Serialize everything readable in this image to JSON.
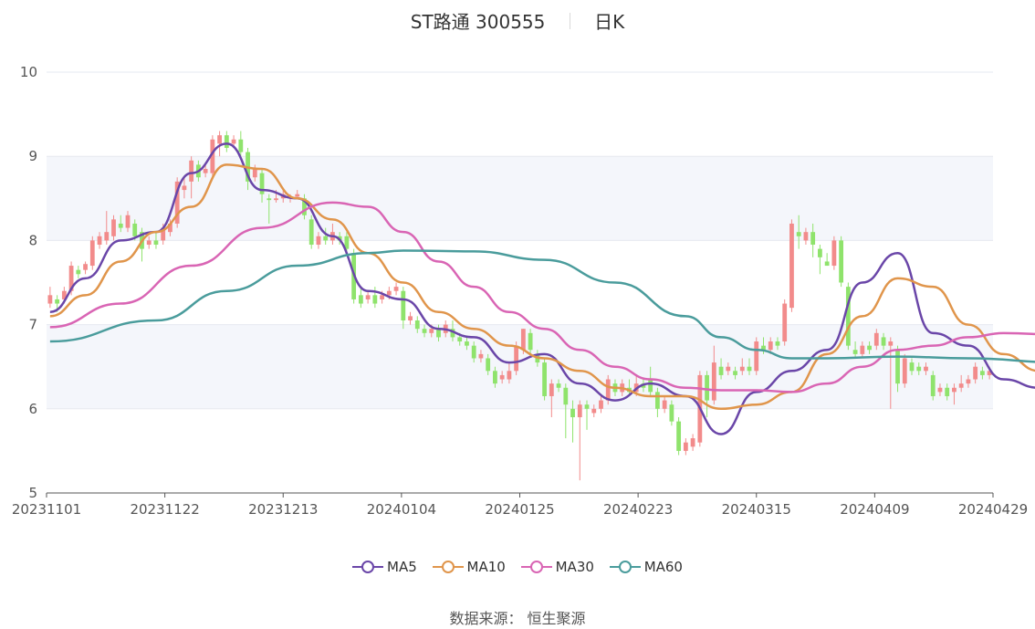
{
  "header": {
    "title": "ST路通 300555",
    "period": "日K"
  },
  "source": {
    "label": "数据来源：",
    "value": "恒生聚源"
  },
  "chart_data": {
    "type": "candlestick",
    "y_range": [
      5,
      10
    ],
    "y_ticks": [
      "5",
      "6",
      "7",
      "8",
      "9",
      "10"
    ],
    "x_ticks": [
      "20231101",
      "20231122",
      "20231213",
      "20240104",
      "20240125",
      "20240223",
      "20240315",
      "20240409",
      "20240429"
    ],
    "legend": [
      "MA5",
      "MA10",
      "MA30",
      "MA60"
    ],
    "colors": {
      "up": "#f28b8b",
      "down": "#8fe36c",
      "MA5": "#6a46a8",
      "MA10": "#e0954b",
      "MA30": "#d965b4",
      "MA60": "#4a9c9c",
      "grid": "#e6e8f0",
      "band": "#f4f6fb"
    },
    "candles": [
      {
        "o": 7.25,
        "c": 7.35,
        "h": 7.45,
        "l": 7.2
      },
      {
        "o": 7.3,
        "c": 7.25,
        "h": 7.35,
        "l": 7.15
      },
      {
        "o": 7.3,
        "c": 7.4,
        "h": 7.45,
        "l": 7.25
      },
      {
        "o": 7.4,
        "c": 7.7,
        "h": 7.75,
        "l": 7.35
      },
      {
        "o": 7.65,
        "c": 7.6,
        "h": 7.7,
        "l": 7.55
      },
      {
        "o": 7.65,
        "c": 7.72,
        "h": 7.75,
        "l": 7.6
      },
      {
        "o": 7.7,
        "c": 8.0,
        "h": 8.05,
        "l": 7.65
      },
      {
        "o": 7.95,
        "c": 8.05,
        "h": 8.1,
        "l": 7.9
      },
      {
        "o": 8.0,
        "c": 8.1,
        "h": 8.35,
        "l": 7.95
      },
      {
        "o": 8.05,
        "c": 8.25,
        "h": 8.3,
        "l": 8.0
      },
      {
        "o": 8.2,
        "c": 8.15,
        "h": 8.3,
        "l": 8.1
      },
      {
        "o": 8.15,
        "c": 8.3,
        "h": 8.35,
        "l": 8.1
      },
      {
        "o": 8.2,
        "c": 8.05,
        "h": 8.25,
        "l": 8.0
      },
      {
        "o": 8.1,
        "c": 7.9,
        "h": 8.15,
        "l": 7.75
      },
      {
        "o": 7.95,
        "c": 8.0,
        "h": 8.05,
        "l": 7.9
      },
      {
        "o": 8.0,
        "c": 7.95,
        "h": 8.1,
        "l": 7.9
      },
      {
        "o": 8.0,
        "c": 8.15,
        "h": 8.2,
        "l": 7.95
      },
      {
        "o": 8.1,
        "c": 8.2,
        "h": 8.25,
        "l": 8.05
      },
      {
        "o": 8.2,
        "c": 8.7,
        "h": 8.75,
        "l": 8.15
      },
      {
        "o": 8.6,
        "c": 8.65,
        "h": 8.75,
        "l": 8.5
      },
      {
        "o": 8.7,
        "c": 8.95,
        "h": 9.0,
        "l": 8.5
      },
      {
        "o": 8.9,
        "c": 8.75,
        "h": 8.95,
        "l": 8.7
      },
      {
        "o": 8.8,
        "c": 8.85,
        "h": 8.9,
        "l": 8.75
      },
      {
        "o": 8.8,
        "c": 9.2,
        "h": 9.25,
        "l": 8.75
      },
      {
        "o": 9.15,
        "c": 9.25,
        "h": 9.3,
        "l": 9.0
      },
      {
        "o": 9.25,
        "c": 9.1,
        "h": 9.3,
        "l": 9.05
      },
      {
        "o": 9.15,
        "c": 9.2,
        "h": 9.25,
        "l": 9.1
      },
      {
        "o": 9.2,
        "c": 9.05,
        "h": 9.3,
        "l": 9.0
      },
      {
        "o": 9.05,
        "c": 8.7,
        "h": 9.1,
        "l": 8.6
      },
      {
        "o": 8.75,
        "c": 8.85,
        "h": 8.9,
        "l": 8.7
      },
      {
        "o": 8.8,
        "c": 8.55,
        "h": 8.85,
        "l": 8.45
      },
      {
        "o": 8.5,
        "c": 8.48,
        "h": 8.55,
        "l": 8.2
      },
      {
        "o": 8.48,
        "c": 8.5,
        "h": 8.6,
        "l": 8.45
      },
      {
        "o": 8.5,
        "c": 8.55,
        "h": 8.6,
        "l": 8.45
      },
      {
        "o": 8.5,
        "c": 8.52,
        "h": 8.55,
        "l": 8.45
      },
      {
        "o": 8.52,
        "c": 8.55,
        "h": 8.6,
        "l": 8.5
      },
      {
        "o": 8.5,
        "c": 8.3,
        "h": 8.55,
        "l": 8.25
      },
      {
        "o": 8.25,
        "c": 7.95,
        "h": 8.3,
        "l": 7.9
      },
      {
        "o": 7.95,
        "c": 8.05,
        "h": 8.1,
        "l": 7.9
      },
      {
        "o": 8.05,
        "c": 8.0,
        "h": 8.15,
        "l": 7.95
      },
      {
        "o": 8.0,
        "c": 8.1,
        "h": 8.2,
        "l": 7.95
      },
      {
        "o": 8.05,
        "c": 8.0,
        "h": 8.1,
        "l": 7.95
      },
      {
        "o": 8.05,
        "c": 7.9,
        "h": 8.1,
        "l": 7.85
      },
      {
        "o": 7.85,
        "c": 7.3,
        "h": 7.9,
        "l": 7.25
      },
      {
        "o": 7.35,
        "c": 7.25,
        "h": 7.45,
        "l": 7.2
      },
      {
        "o": 7.3,
        "c": 7.35,
        "h": 7.4,
        "l": 7.25
      },
      {
        "o": 7.35,
        "c": 7.25,
        "h": 7.45,
        "l": 7.2
      },
      {
        "o": 7.3,
        "c": 7.35,
        "h": 7.4,
        "l": 7.25
      },
      {
        "o": 7.35,
        "c": 7.4,
        "h": 7.45,
        "l": 7.3
      },
      {
        "o": 7.4,
        "c": 7.45,
        "h": 7.5,
        "l": 7.35
      },
      {
        "o": 7.4,
        "c": 7.05,
        "h": 7.45,
        "l": 6.95
      },
      {
        "o": 7.05,
        "c": 7.1,
        "h": 7.15,
        "l": 7.0
      },
      {
        "o": 7.05,
        "c": 6.95,
        "h": 7.1,
        "l": 6.9
      },
      {
        "o": 6.95,
        "c": 6.9,
        "h": 7.0,
        "l": 6.85
      },
      {
        "o": 6.9,
        "c": 6.95,
        "h": 7.0,
        "l": 6.85
      },
      {
        "o": 6.95,
        "c": 6.85,
        "h": 7.0,
        "l": 6.8
      },
      {
        "o": 6.9,
        "c": 7.0,
        "h": 7.05,
        "l": 6.85
      },
      {
        "o": 6.95,
        "c": 6.85,
        "h": 7.05,
        "l": 6.8
      },
      {
        "o": 6.85,
        "c": 6.8,
        "h": 6.9,
        "l": 6.75
      },
      {
        "o": 6.8,
        "c": 6.75,
        "h": 6.85,
        "l": 6.7
      },
      {
        "o": 6.75,
        "c": 6.6,
        "h": 6.8,
        "l": 6.55
      },
      {
        "o": 6.6,
        "c": 6.65,
        "h": 6.7,
        "l": 6.55
      },
      {
        "o": 6.6,
        "c": 6.45,
        "h": 6.65,
        "l": 6.4
      },
      {
        "o": 6.45,
        "c": 6.3,
        "h": 6.5,
        "l": 6.25
      },
      {
        "o": 6.35,
        "c": 6.4,
        "h": 6.45,
        "l": 6.3
      },
      {
        "o": 6.35,
        "c": 6.45,
        "h": 6.55,
        "l": 6.3
      },
      {
        "o": 6.45,
        "c": 6.75,
        "h": 6.8,
        "l": 6.4
      },
      {
        "o": 6.7,
        "c": 6.95,
        "h": 6.95,
        "l": 6.65
      },
      {
        "o": 6.9,
        "c": 6.7,
        "h": 6.95,
        "l": 6.65
      },
      {
        "o": 6.65,
        "c": 6.55,
        "h": 6.7,
        "l": 6.5
      },
      {
        "o": 6.55,
        "c": 6.15,
        "h": 6.6,
        "l": 6.1
      },
      {
        "o": 6.15,
        "c": 6.3,
        "h": 6.35,
        "l": 5.9
      },
      {
        "o": 6.3,
        "c": 6.25,
        "h": 6.35,
        "l": 6.2
      },
      {
        "o": 6.25,
        "c": 6.05,
        "h": 6.3,
        "l": 5.65
      },
      {
        "o": 6.0,
        "c": 5.9,
        "h": 6.1,
        "l": 5.6
      },
      {
        "o": 5.9,
        "c": 6.05,
        "h": 6.1,
        "l": 5.15
      },
      {
        "o": 6.05,
        "c": 6.0,
        "h": 6.1,
        "l": 5.75
      },
      {
        "o": 5.95,
        "c": 6.0,
        "h": 6.05,
        "l": 5.9
      },
      {
        "o": 6.0,
        "c": 6.1,
        "h": 6.15,
        "l": 5.95
      },
      {
        "o": 6.1,
        "c": 6.35,
        "h": 6.4,
        "l": 6.05
      },
      {
        "o": 6.3,
        "c": 6.2,
        "h": 6.35,
        "l": 6.15
      },
      {
        "o": 6.2,
        "c": 6.3,
        "h": 6.35,
        "l": 6.15
      },
      {
        "o": 6.25,
        "c": 6.2,
        "h": 6.35,
        "l": 6.15
      },
      {
        "o": 6.2,
        "c": 6.3,
        "h": 6.4,
        "l": 6.15
      },
      {
        "o": 6.3,
        "c": 6.25,
        "h": 6.35,
        "l": 6.2
      },
      {
        "o": 6.35,
        "c": 6.2,
        "h": 6.5,
        "l": 6.15
      },
      {
        "o": 6.2,
        "c": 6.0,
        "h": 6.25,
        "l": 5.9
      },
      {
        "o": 6.0,
        "c": 6.1,
        "h": 6.15,
        "l": 5.95
      },
      {
        "o": 6.05,
        "c": 5.85,
        "h": 6.1,
        "l": 5.8
      },
      {
        "o": 5.85,
        "c": 5.5,
        "h": 5.9,
        "l": 5.45
      },
      {
        "o": 5.5,
        "c": 5.6,
        "h": 5.65,
        "l": 5.45
      },
      {
        "o": 5.55,
        "c": 5.65,
        "h": 5.7,
        "l": 5.5
      },
      {
        "o": 5.6,
        "c": 6.4,
        "h": 6.45,
        "l": 5.55
      },
      {
        "o": 6.4,
        "c": 6.1,
        "h": 6.45,
        "l": 5.9
      },
      {
        "o": 6.1,
        "c": 6.55,
        "h": 6.75,
        "l": 6.05
      },
      {
        "o": 6.5,
        "c": 6.4,
        "h": 6.6,
        "l": 6.35
      },
      {
        "o": 6.45,
        "c": 6.5,
        "h": 6.55,
        "l": 6.4
      },
      {
        "o": 6.45,
        "c": 6.4,
        "h": 6.5,
        "l": 6.35
      },
      {
        "o": 6.45,
        "c": 6.5,
        "h": 6.6,
        "l": 6.4
      },
      {
        "o": 6.5,
        "c": 6.45,
        "h": 6.6,
        "l": 6.4
      },
      {
        "o": 6.45,
        "c": 6.8,
        "h": 6.85,
        "l": 6.4
      },
      {
        "o": 6.75,
        "c": 6.7,
        "h": 6.85,
        "l": 6.65
      },
      {
        "o": 6.7,
        "c": 6.8,
        "h": 6.85,
        "l": 6.65
      },
      {
        "o": 6.8,
        "c": 6.75,
        "h": 6.85,
        "l": 6.7
      },
      {
        "o": 6.8,
        "c": 7.25,
        "h": 7.3,
        "l": 6.75
      },
      {
        "o": 7.2,
        "c": 8.2,
        "h": 8.25,
        "l": 7.15
      },
      {
        "o": 8.1,
        "c": 8.05,
        "h": 8.3,
        "l": 7.9
      },
      {
        "o": 8.0,
        "c": 8.1,
        "h": 8.15,
        "l": 7.95
      },
      {
        "o": 8.1,
        "c": 7.95,
        "h": 8.2,
        "l": 7.8
      },
      {
        "o": 7.9,
        "c": 7.8,
        "h": 7.95,
        "l": 7.6
      },
      {
        "o": 7.75,
        "c": 7.7,
        "h": 7.85,
        "l": 7.7
      },
      {
        "o": 7.7,
        "c": 8.0,
        "h": 8.05,
        "l": 7.65
      },
      {
        "o": 8.0,
        "c": 7.5,
        "h": 8.05,
        "l": 7.45
      },
      {
        "o": 7.45,
        "c": 6.75,
        "h": 7.5,
        "l": 6.7
      },
      {
        "o": 6.7,
        "c": 6.65,
        "h": 6.8,
        "l": 6.6
      },
      {
        "o": 6.65,
        "c": 6.75,
        "h": 6.8,
        "l": 6.6
      },
      {
        "o": 6.75,
        "c": 6.7,
        "h": 6.8,
        "l": 6.65
      },
      {
        "o": 6.75,
        "c": 6.9,
        "h": 6.95,
        "l": 6.7
      },
      {
        "o": 6.85,
        "c": 6.75,
        "h": 6.9,
        "l": 6.7
      },
      {
        "o": 6.75,
        "c": 6.8,
        "h": 6.85,
        "l": 6.0
      },
      {
        "o": 6.7,
        "c": 6.3,
        "h": 6.75,
        "l": 6.2
      },
      {
        "o": 6.3,
        "c": 6.6,
        "h": 6.65,
        "l": 6.25
      },
      {
        "o": 6.55,
        "c": 6.45,
        "h": 6.6,
        "l": 6.4
      },
      {
        "o": 6.5,
        "c": 6.45,
        "h": 6.55,
        "l": 6.4
      },
      {
        "o": 6.45,
        "c": 6.5,
        "h": 6.55,
        "l": 6.4
      },
      {
        "o": 6.4,
        "c": 6.15,
        "h": 6.45,
        "l": 6.1
      },
      {
        "o": 6.2,
        "c": 6.25,
        "h": 6.3,
        "l": 6.15
      },
      {
        "o": 6.25,
        "c": 6.15,
        "h": 6.3,
        "l": 6.1
      },
      {
        "o": 6.2,
        "c": 6.25,
        "h": 6.3,
        "l": 6.05
      },
      {
        "o": 6.25,
        "c": 6.3,
        "h": 6.4,
        "l": 6.2
      },
      {
        "o": 6.3,
        "c": 6.35,
        "h": 6.4,
        "l": 6.25
      },
      {
        "o": 6.35,
        "c": 6.5,
        "h": 6.55,
        "l": 6.3
      },
      {
        "o": 6.45,
        "c": 6.4,
        "h": 6.5,
        "l": 6.35
      },
      {
        "o": 6.4,
        "c": 6.45,
        "h": 6.5,
        "l": 6.35
      }
    ],
    "ma": {
      "MA5": [
        [
          0,
          7.15
        ],
        [
          5,
          7.55
        ],
        [
          10,
          8.0
        ],
        [
          15,
          8.1
        ],
        [
          20,
          8.8
        ],
        [
          25,
          9.15
        ],
        [
          30,
          8.6
        ],
        [
          35,
          8.5
        ],
        [
          40,
          8.05
        ],
        [
          45,
          7.4
        ],
        [
          50,
          7.3
        ],
        [
          55,
          6.95
        ],
        [
          60,
          6.85
        ],
        [
          65,
          6.55
        ],
        [
          70,
          6.65
        ],
        [
          75,
          6.3
        ],
        [
          80,
          6.1
        ],
        [
          85,
          6.3
        ],
        [
          90,
          6.15
        ],
        [
          95,
          5.7
        ],
        [
          100,
          6.2
        ],
        [
          105,
          6.45
        ],
        [
          110,
          6.7
        ],
        [
          115,
          7.5
        ],
        [
          120,
          7.85
        ],
        [
          125,
          6.9
        ],
        [
          130,
          6.75
        ],
        [
          135,
          6.35
        ],
        [
          140,
          6.25
        ],
        [
          143,
          6.3
        ]
      ],
      "MA10": [
        [
          0,
          7.1
        ],
        [
          5,
          7.35
        ],
        [
          10,
          7.75
        ],
        [
          15,
          8.1
        ],
        [
          20,
          8.4
        ],
        [
          25,
          8.9
        ],
        [
          30,
          8.85
        ],
        [
          35,
          8.5
        ],
        [
          40,
          8.25
        ],
        [
          45,
          7.85
        ],
        [
          50,
          7.5
        ],
        [
          55,
          7.15
        ],
        [
          60,
          6.95
        ],
        [
          65,
          6.75
        ],
        [
          70,
          6.6
        ],
        [
          75,
          6.45
        ],
        [
          80,
          6.25
        ],
        [
          85,
          6.15
        ],
        [
          90,
          6.15
        ],
        [
          95,
          6.0
        ],
        [
          100,
          6.05
        ],
        [
          105,
          6.2
        ],
        [
          110,
          6.65
        ],
        [
          115,
          7.1
        ],
        [
          120,
          7.55
        ],
        [
          125,
          7.45
        ],
        [
          130,
          7.0
        ],
        [
          135,
          6.65
        ],
        [
          140,
          6.45
        ],
        [
          143,
          6.35
        ]
      ],
      "MA30": [
        [
          0,
          6.97
        ],
        [
          10,
          7.25
        ],
        [
          20,
          7.7
        ],
        [
          30,
          8.15
        ],
        [
          40,
          8.45
        ],
        [
          45,
          8.4
        ],
        [
          50,
          8.1
        ],
        [
          55,
          7.75
        ],
        [
          60,
          7.45
        ],
        [
          65,
          7.15
        ],
        [
          70,
          6.95
        ],
        [
          75,
          6.7
        ],
        [
          80,
          6.5
        ],
        [
          85,
          6.35
        ],
        [
          90,
          6.25
        ],
        [
          95,
          6.22
        ],
        [
          100,
          6.22
        ],
        [
          105,
          6.2
        ],
        [
          110,
          6.3
        ],
        [
          115,
          6.5
        ],
        [
          120,
          6.7
        ],
        [
          125,
          6.75
        ],
        [
          130,
          6.85
        ],
        [
          135,
          6.9
        ],
        [
          143,
          6.88
        ]
      ],
      "MA60": [
        [
          0,
          6.8
        ],
        [
          15,
          7.05
        ],
        [
          25,
          7.4
        ],
        [
          35,
          7.7
        ],
        [
          45,
          7.85
        ],
        [
          50,
          7.88
        ],
        [
          60,
          7.87
        ],
        [
          70,
          7.77
        ],
        [
          80,
          7.5
        ],
        [
          90,
          7.1
        ],
        [
          95,
          6.85
        ],
        [
          100,
          6.7
        ],
        [
          105,
          6.6
        ],
        [
          110,
          6.6
        ],
        [
          120,
          6.62
        ],
        [
          130,
          6.6
        ],
        [
          143,
          6.55
        ]
      ]
    }
  }
}
